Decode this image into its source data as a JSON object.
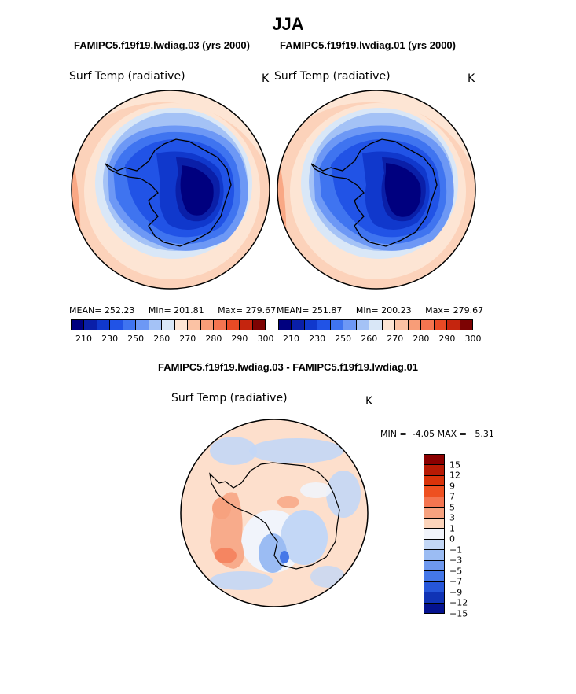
{
  "title": "JJA",
  "panels": [
    {
      "case_title": "FAMIPC5.f19f19.lwdiag.03 (yrs 2000)",
      "var_label": "Surf Temp (radiative)",
      "unit": "K",
      "stats": {
        "mean_label": "MEAN=",
        "mean": "252.23",
        "min_label": "Min=",
        "min": "201.81",
        "max_label": "Max=",
        "max": "279.67"
      }
    },
    {
      "case_title": "FAMIPC5.f19f19.lwdiag.01 (yrs 2000)",
      "var_label": "Surf Temp (radiative)",
      "unit": "K",
      "stats": {
        "mean_label": "MEAN=",
        "mean": "251.87",
        "min_label": "Min=",
        "min": "200.23",
        "max_label": "Max=",
        "max": "279.67"
      }
    }
  ],
  "diff_panel": {
    "title": "FAMIPC5.f19f19.lwdiag.03 - FAMIPC5.f19f19.lwdiag.01",
    "var_label": "Surf Temp (radiative)",
    "unit": "K",
    "min_label": "MIN =",
    "min": "-4.05",
    "max_label": "MAX =",
    "max": "5.31"
  },
  "chart_data": [
    {
      "type": "heatmap",
      "projection": "south polar stereographic",
      "title": "FAMIPC5.f19f19.lwdiag.03 (yrs 2000)",
      "variable": "Surf Temp (radiative)",
      "units": "K",
      "mean": 252.23,
      "min": 201.81,
      "max": 279.67,
      "colorbar_ticks": [
        "210",
        "230",
        "250",
        "260",
        "270",
        "280",
        "290",
        "300"
      ],
      "colorbar_colors": [
        "#00007f",
        "#0a1fa8",
        "#1038cc",
        "#2153e6",
        "#3f74f0",
        "#6d98f5",
        "#a4c2f6",
        "#d9e7f7",
        "#fde5d4",
        "#fbc2a4",
        "#f89d78",
        "#f47550",
        "#e84a25",
        "#c5250e",
        "#7d0303"
      ]
    },
    {
      "type": "heatmap",
      "projection": "south polar stereographic",
      "title": "FAMIPC5.f19f19.lwdiag.01 (yrs 2000)",
      "variable": "Surf Temp (radiative)",
      "units": "K",
      "mean": 251.87,
      "min": 200.23,
      "max": 279.67,
      "colorbar_ticks": [
        "210",
        "230",
        "250",
        "260",
        "270",
        "280",
        "290",
        "300"
      ],
      "colorbar_colors": [
        "#00007f",
        "#0a1fa8",
        "#1038cc",
        "#2153e6",
        "#3f74f0",
        "#6d98f5",
        "#a4c2f6",
        "#d9e7f7",
        "#fde5d4",
        "#fbc2a4",
        "#f89d78",
        "#f47550",
        "#e84a25",
        "#c5250e",
        "#7d0303"
      ]
    },
    {
      "type": "heatmap",
      "projection": "south polar stereographic",
      "title": "FAMIPC5.f19f19.lwdiag.03 - FAMIPC5.f19f19.lwdiag.01",
      "variable": "Surf Temp (radiative)",
      "units": "K",
      "min": -4.05,
      "max": 5.31,
      "colorbar_ticks": [
        "15",
        "12",
        "9",
        "7",
        "5",
        "3",
        "1",
        "0",
        "−1",
        "−3",
        "−5",
        "−7",
        "−9",
        "−12",
        "−15"
      ],
      "colorbar_colors": [
        "#8b0000",
        "#b81a04",
        "#d9330a",
        "#ee5020",
        "#f47550",
        "#f7a27f",
        "#fcd4bb",
        "#f1f4fb",
        "#c3d7f6",
        "#9bbcf3",
        "#6e98ee",
        "#4477e8",
        "#2656d9",
        "#1033b5",
        "#04128f"
      ]
    }
  ]
}
